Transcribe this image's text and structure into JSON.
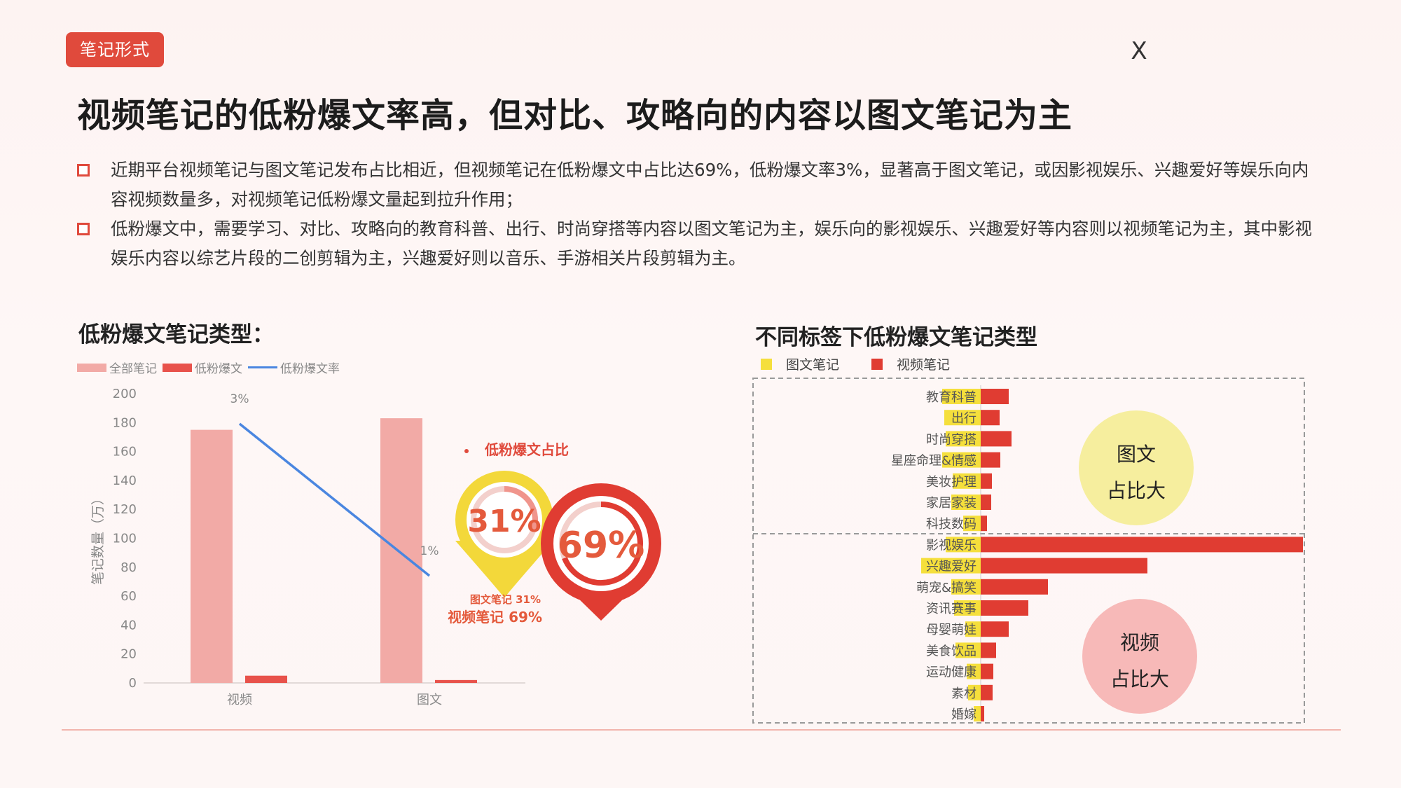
{
  "header": {
    "tag": "笔记形式",
    "close_label": "X",
    "title": "视频笔记的低粉爆文率高，但对比、攻略向的内容以图文笔记为主"
  },
  "bullets": [
    "近期平台视频笔记与图文笔记发布占比相近，但视频笔记在低粉爆文中占比达69%，低粉爆文率3%，显著高于图文笔记，或因影视娱乐、兴趣爱好等娱乐向内容视频数量多，对视频笔记低粉爆文量起到拉升作用；",
    "低粉爆文中，需要学习、对比、攻略向的教育科普、出行、时尚穿搭等内容以图文笔记为主，娱乐向的影视娱乐、兴趣爱好等内容则以视频笔记为主，其中影视娱乐内容以综艺片段的二创剪辑为主，兴趣爱好则以音乐、手游相关片段剪辑为主。"
  ],
  "colors": {
    "accent": "#e04a3c",
    "all_notes": "#f2aaa6",
    "low_fan": "#e8524b",
    "rate_line": "#4a86e0",
    "image_note": "#f5df3c",
    "video_note": "#e03c32",
    "circle_yellow": "#f6ee9e",
    "circle_pink": "#f7b9b8"
  },
  "chart_data": [
    {
      "type": "bar",
      "title": "低粉爆文笔记类型：",
      "categories": [
        "视频",
        "图文"
      ],
      "series": [
        {
          "name": "全部笔记",
          "type": "bar",
          "values": [
            175,
            183
          ]
        },
        {
          "name": "低粉爆文",
          "type": "bar",
          "values": [
            5,
            2
          ]
        },
        {
          "name": "低粉爆文率",
          "type": "line",
          "values": [
            3,
            1
          ],
          "labels": [
            "3%",
            "1%"
          ]
        }
      ],
      "ylabel": "笔记数量（万）",
      "ylim": [
        0,
        200
      ],
      "yticks": [
        0,
        20,
        40,
        60,
        80,
        100,
        120,
        140,
        160,
        180,
        200
      ],
      "legend": "top-left",
      "grid": false
    },
    {
      "type": "pie",
      "title": "低粉爆文占比",
      "labels": [
        "图文笔记",
        "视频笔记"
      ],
      "values": [
        31,
        69
      ],
      "value_labels": [
        "31%",
        "69%"
      ],
      "legend_lines": [
        "图文笔记 31%",
        "视频笔记 69%"
      ]
    },
    {
      "type": "bar",
      "orientation": "horizontal",
      "stacked": true,
      "title": "不同标签下低粉爆文笔记类型",
      "categories": [
        "教育科普",
        "出行",
        "时尚穿搭",
        "星座命理&情感",
        "美妆护理",
        "家居家装",
        "科技数码",
        "影视娱乐",
        "兴趣爱好",
        "萌宠&搞笑",
        "资讯赛事",
        "母婴萌娃",
        "美食饮品",
        "运动健康",
        "素材",
        "婚嫁"
      ],
      "series": [
        {
          "name": "图文笔记",
          "values": [
            55,
            52,
            50,
            55,
            40,
            42,
            25,
            50,
            85,
            42,
            38,
            22,
            36,
            20,
            18,
            10
          ]
        },
        {
          "name": "视频笔记",
          "values": [
            40,
            27,
            44,
            28,
            16,
            15,
            9,
            460,
            238,
            96,
            68,
            40,
            22,
            18,
            17,
            5
          ]
        }
      ],
      "legend": "top-left",
      "annotations": [
        "图文\n占比大",
        "视频\n占比大"
      ],
      "annotation_lines": [
        [
          "图文",
          "占比大"
        ],
        [
          "视频",
          "占比大"
        ]
      ]
    }
  ]
}
